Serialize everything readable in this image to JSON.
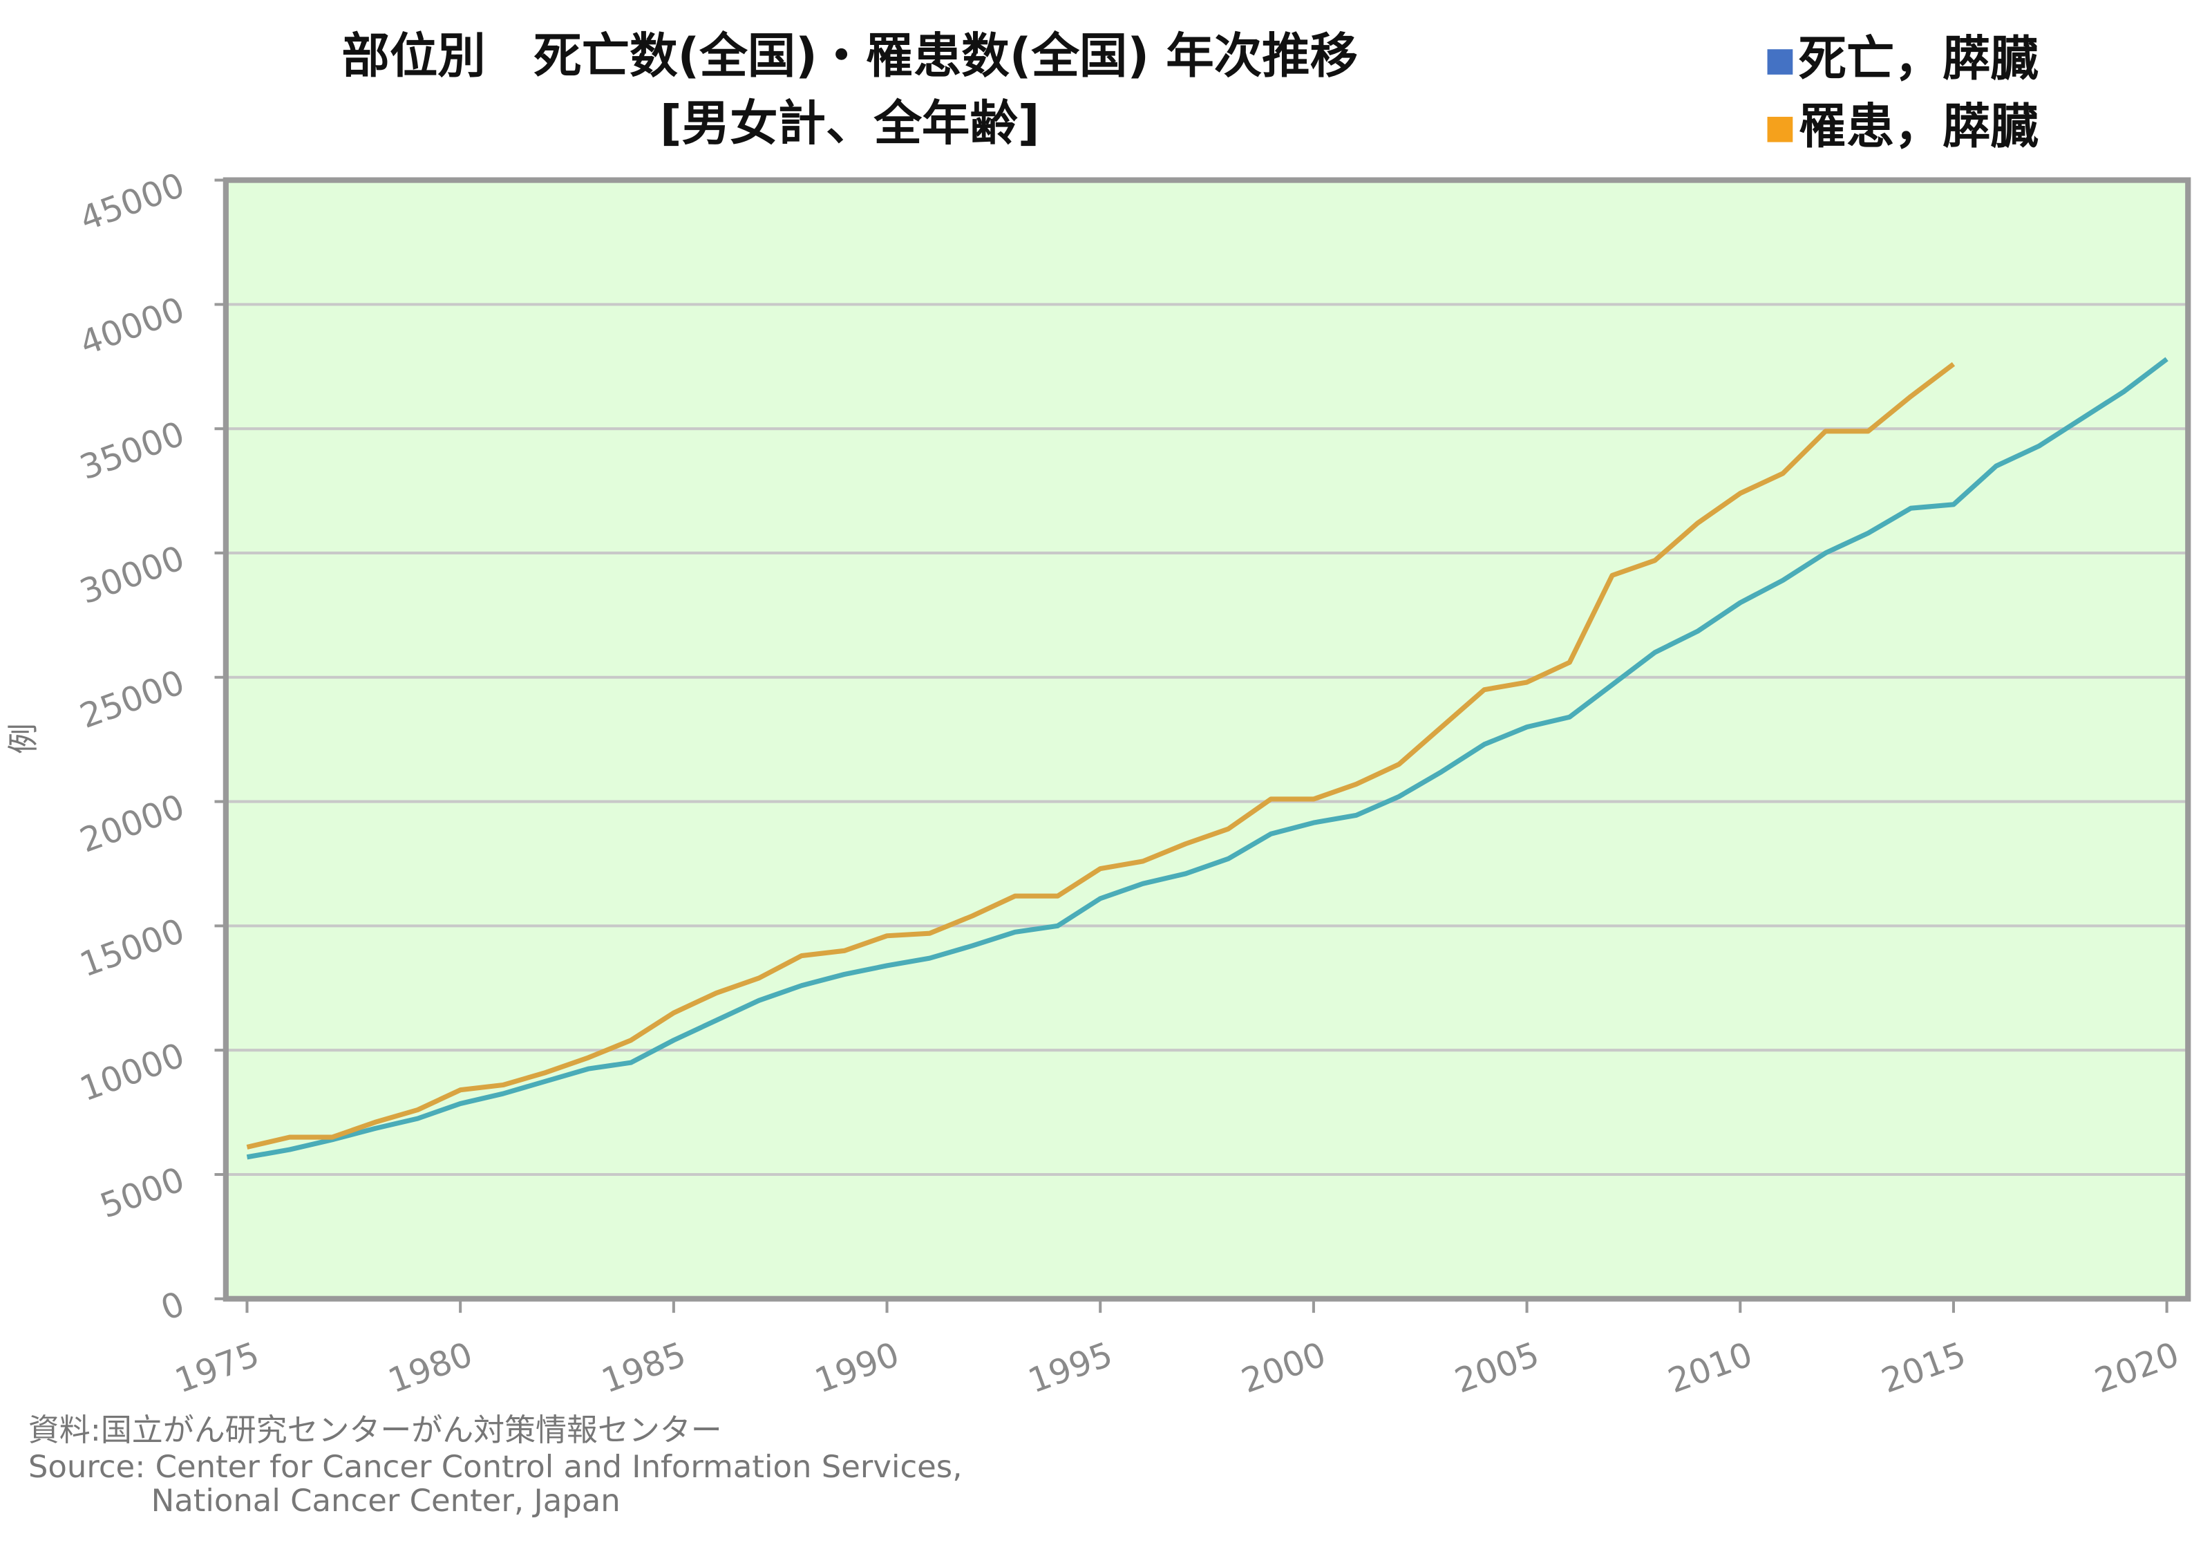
{
  "chart_data": {
    "type": "line",
    "title": "部位別　死亡数(全国)・罹患数(全国)  年次推移",
    "subtitle": "[男女計、全年齢]",
    "y_label": "例",
    "x": [
      1975,
      1976,
      1977,
      1978,
      1979,
      1980,
      1981,
      1982,
      1983,
      1984,
      1985,
      1986,
      1987,
      1988,
      1989,
      1990,
      1991,
      1992,
      1993,
      1994,
      1995,
      1996,
      1997,
      1998,
      1999,
      2000,
      2001,
      2002,
      2003,
      2004,
      2005,
      2006,
      2007,
      2008,
      2009,
      2010,
      2011,
      2012,
      2013,
      2014,
      2015,
      2016,
      2017,
      2018,
      2019,
      2020
    ],
    "series": [
      {
        "name": "死亡，膵臓",
        "color": "#4aacb8",
        "legend_color": "#4472c4",
        "values": [
          5700,
          6000,
          6400,
          6850,
          7250,
          7850,
          8250,
          8750,
          9250,
          9500,
          10400,
          11200,
          12000,
          12600,
          13050,
          13400,
          13700,
          14200,
          14750,
          15000,
          16100,
          16700,
          17100,
          17700,
          18700,
          19150,
          19450,
          20200,
          21200,
          22300,
          23000,
          23400,
          24700,
          26000,
          26850,
          28000,
          28900,
          30000,
          30800,
          31800,
          31950,
          33500,
          34300,
          35400,
          36500,
          37800
        ]
      },
      {
        "name": "罹患，膵臓",
        "color": "#d9a441",
        "legend_color": "#f5a11c",
        "values": [
          6100,
          6500,
          6500,
          7100,
          7600,
          8400,
          8600,
          9100,
          9700,
          10400,
          11500,
          12300,
          12900,
          13800,
          14000,
          14600,
          14700,
          15400,
          16200,
          16200,
          17300,
          17600,
          18300,
          18900,
          20100,
          20100,
          20700,
          21500,
          23000,
          24500,
          24800,
          25600,
          29100,
          29700,
          31200,
          32400,
          33200,
          34900,
          34900,
          36300,
          37600,
          null,
          null,
          null,
          null,
          null
        ]
      }
    ],
    "xlim": [
      1975,
      2020
    ],
    "xticks": [
      1975,
      1980,
      1985,
      1990,
      1995,
      2000,
      2005,
      2010,
      2015,
      2020
    ],
    "ylim": [
      0,
      45000
    ],
    "yticks": [
      0,
      5000,
      10000,
      15000,
      20000,
      25000,
      30000,
      35000,
      40000,
      45000
    ],
    "grid": true,
    "legend": "top-right",
    "plot_background": "#e2fddb",
    "notes": [
      "資料:国立がん研究センターがん対策情報センター",
      "Source: Center for Cancer Control and Information Services,",
      "National Cancer Center, Japan"
    ]
  }
}
